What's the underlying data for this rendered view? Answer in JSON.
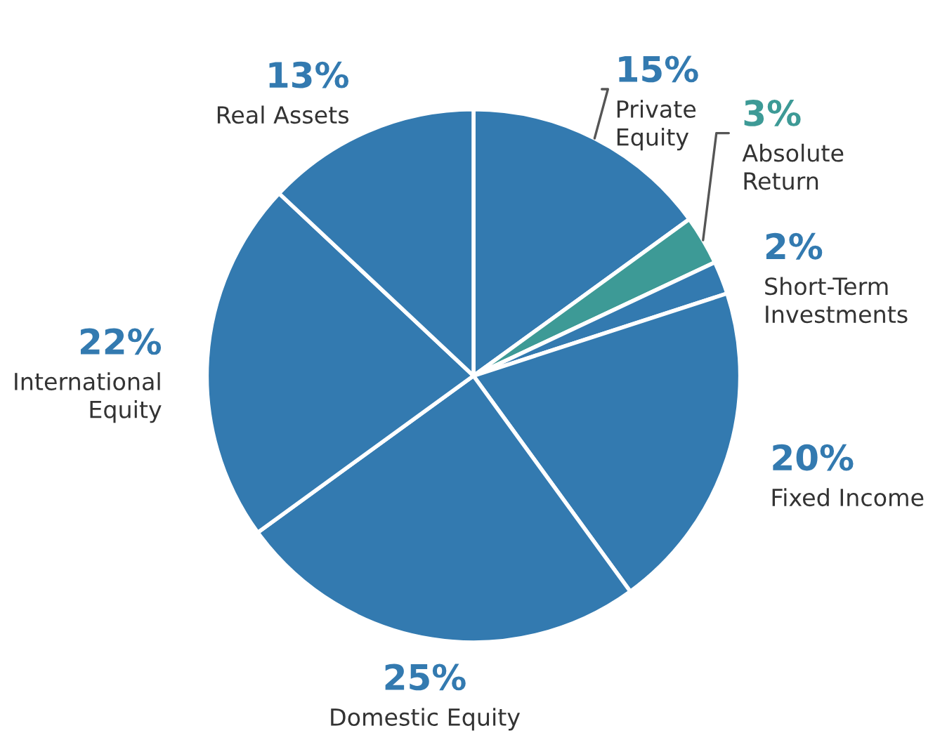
{
  "chart_data": {
    "type": "pie",
    "categories": [
      "Private\nEquity",
      "Absolute\nReturn",
      "Short-Term\nInvestments",
      "Fixed Income",
      "Domestic Equity",
      "International\nEquity",
      "Real Assets"
    ],
    "values": [
      15,
      3,
      2,
      20,
      25,
      22,
      13
    ],
    "value_labels": [
      "15%",
      "3%",
      "2%",
      "20%",
      "25%",
      "22%",
      "13%"
    ],
    "colors": [
      "#337ab0",
      "#3d9a96",
      "#337ab0",
      "#337ab0",
      "#337ab0",
      "#337ab0",
      "#337ab0"
    ]
  }
}
